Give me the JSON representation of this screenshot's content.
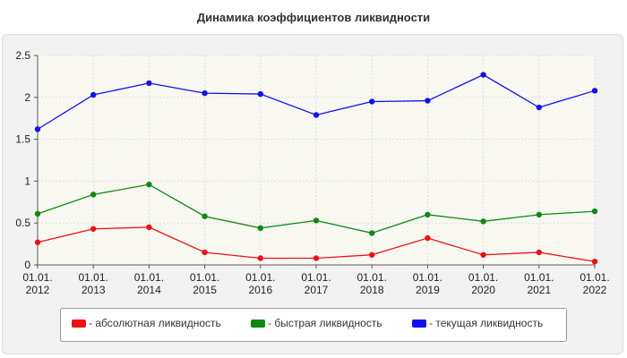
{
  "chart_data": {
    "type": "line",
    "title": "Динамика коэффициентов ликвидности",
    "xlabel": "",
    "ylabel": "",
    "categories": [
      "01.01.2012",
      "01.01.2013",
      "01.01.2014",
      "01.01.2015",
      "01.01.2016",
      "01.01.2017",
      "01.01.2018",
      "01.01.2019",
      "01.01.2020",
      "01.01.2021",
      "01.01.2022"
    ],
    "x_tick_labels": [
      [
        "01.01.",
        "2012"
      ],
      [
        "01.01.",
        "2013"
      ],
      [
        "01.01.",
        "2014"
      ],
      [
        "01.01.",
        "2015"
      ],
      [
        "01.01.",
        "2016"
      ],
      [
        "01.01.",
        "2017"
      ],
      [
        "01.01.",
        "2018"
      ],
      [
        "01.01.",
        "2019"
      ],
      [
        "01.01.",
        "2020"
      ],
      [
        "01.01.",
        "2021"
      ],
      [
        "01.01.",
        "2022"
      ]
    ],
    "y_ticks": [
      "0",
      "0.5",
      "1",
      "1.5",
      "2",
      "2.5"
    ],
    "ylim": [
      0,
      2.5
    ],
    "grid": true,
    "legend_position": "bottom",
    "series": [
      {
        "name": "- абсолютная ликвидность",
        "color": "#ee1111",
        "values": [
          0.27,
          0.43,
          0.45,
          0.15,
          0.08,
          0.08,
          0.12,
          0.32,
          0.12,
          0.15,
          0.04
        ]
      },
      {
        "name": "- быстрая ликвидность",
        "color": "#118811",
        "values": [
          0.61,
          0.84,
          0.96,
          0.58,
          0.44,
          0.53,
          0.38,
          0.6,
          0.52,
          0.6,
          0.64
        ]
      },
      {
        "name": "- текущая ликвидность",
        "color": "#1111ee",
        "values": [
          1.62,
          2.03,
          2.17,
          2.05,
          2.04,
          1.79,
          1.95,
          1.96,
          2.27,
          1.88,
          2.08
        ]
      }
    ]
  }
}
